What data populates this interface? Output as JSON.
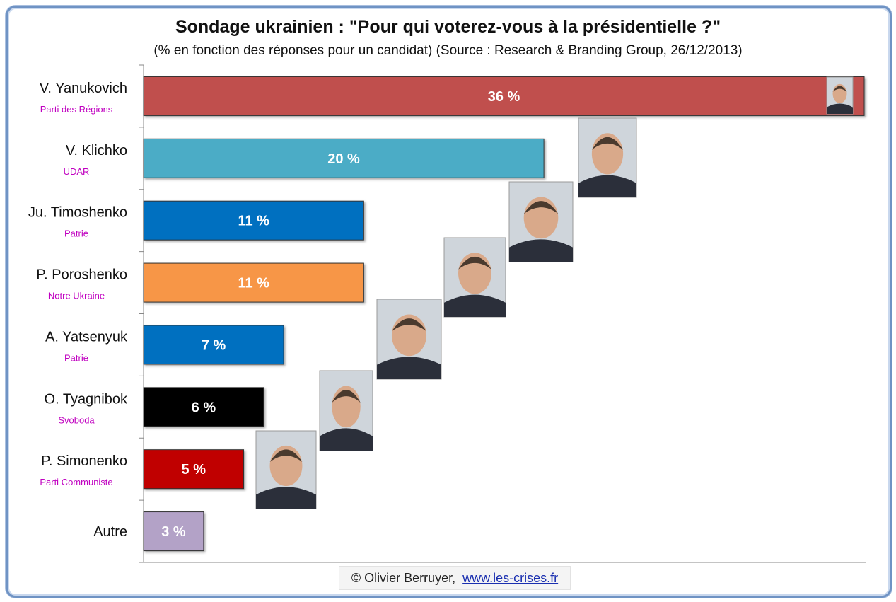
{
  "chart_data": {
    "type": "bar",
    "orientation": "horizontal",
    "title": "Sondage ukrainien : \"Pour qui voterez-vous à la présidentielle ?\"",
    "subtitle": "(% en fonction des réponses pour un candidat) (Source : Research & Branding Group, 26/12/2013)",
    "categories": [
      "V. Yanukovich",
      "V. Klichko",
      "Ju. Timoshenko",
      "P. Poroshenko",
      "A. Yatsenyuk",
      "O. Tyagnibok",
      "P. Simonenko",
      "Autre"
    ],
    "parties": [
      "Parti des Régions",
      "UDAR",
      "Patrie",
      "Notre Ukraine",
      "Patrie",
      "Svoboda",
      "Parti Communiste",
      ""
    ],
    "values": [
      36,
      20,
      11,
      11,
      7,
      6,
      5,
      3
    ],
    "value_labels": [
      "36 %",
      "20 %",
      "11 %",
      "11 %",
      "7 %",
      "6 %",
      "5 %",
      "3 %"
    ],
    "colors": [
      "#c0504d",
      "#4bacc6",
      "#0070c0",
      "#f79646",
      "#0070c0",
      "#000000",
      "#c00000",
      "#b3a2c7"
    ],
    "portraits": [
      true,
      true,
      true,
      true,
      true,
      true,
      true,
      false
    ],
    "xlim": [
      0,
      36
    ],
    "grid": false,
    "legend": "none"
  },
  "footer": {
    "copyright": "© Olivier Berruyer,",
    "link": "www.les-crises.fr"
  },
  "colors": {
    "frame": "#6f93c4",
    "party_label": "#c000c0",
    "link": "#1a2fb0"
  }
}
